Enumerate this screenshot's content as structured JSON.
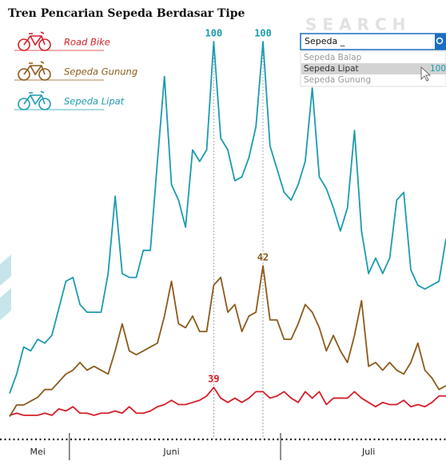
{
  "chart_data": {
    "type": "line",
    "title": "Tren Pencarian Sepeda Berdasar Tipe",
    "categories": [
      null,
      null,
      null,
      null,
      "Mei",
      null,
      null,
      null,
      null,
      null,
      null,
      null,
      null,
      null,
      null,
      null,
      null,
      null,
      null,
      null,
      null,
      null,
      null,
      "Juni",
      null,
      null,
      null,
      null,
      null,
      null,
      null,
      null,
      null,
      null,
      null,
      null,
      null,
      null,
      null,
      null,
      null,
      null,
      null,
      null,
      null,
      null,
      null,
      null,
      null,
      null,
      null,
      "Juli",
      null,
      null,
      null,
      null,
      null,
      null,
      null,
      null,
      null,
      null,
      null
    ],
    "ylim": [
      0,
      100
    ],
    "y2lim": [
      20,
      200
    ],
    "series": [
      {
        "name": "Sepeda Lipat",
        "color": "#1b9bb0",
        "values": [
          9,
          14,
          21,
          20,
          23,
          22,
          24,
          31,
          38,
          39,
          32,
          30,
          30,
          30,
          40,
          60,
          40,
          39,
          39,
          46,
          46,
          69,
          91,
          63,
          59,
          52,
          72,
          69,
          72,
          100,
          75,
          72,
          64,
          65,
          70,
          78,
          100,
          73,
          67,
          61,
          59,
          63,
          69,
          88,
          65,
          62,
          57,
          51,
          57,
          77,
          51,
          40,
          44,
          40,
          44,
          59,
          61,
          41,
          37,
          36,
          37,
          38,
          49
        ],
        "value_labels": [
          null,
          null,
          null,
          null,
          null,
          null,
          null,
          null,
          null,
          null,
          null,
          null,
          null,
          null,
          null,
          null,
          null,
          null,
          null,
          null,
          null,
          null,
          null,
          null,
          null,
          null,
          null,
          null,
          null,
          "100",
          null,
          null,
          null,
          null,
          null,
          null,
          "100",
          null,
          null,
          null,
          null,
          null,
          null,
          null,
          null,
          null,
          null,
          null,
          null,
          null,
          null,
          null,
          null,
          null,
          null,
          null,
          null,
          null,
          null,
          null,
          null,
          null,
          null
        ]
      },
      {
        "name": "Sepeda Gunung",
        "color": "#8b5a1b",
        "values": [
          3,
          6,
          6,
          7,
          8,
          10,
          10,
          12,
          14,
          15,
          17,
          15,
          16,
          15,
          14,
          20,
          27,
          20,
          19,
          20,
          21,
          22,
          29,
          38,
          27,
          26,
          29,
          25,
          25,
          37,
          39,
          30,
          32,
          25,
          29,
          30,
          42,
          28,
          28,
          23,
          23,
          27,
          32,
          30,
          26,
          20,
          24,
          20,
          17,
          24,
          33,
          16,
          17,
          15,
          17,
          15,
          14,
          17,
          22,
          15,
          13,
          10,
          11
        ],
        "value_labels": [
          null,
          null,
          null,
          null,
          null,
          null,
          null,
          null,
          null,
          null,
          null,
          null,
          null,
          null,
          null,
          null,
          null,
          null,
          null,
          null,
          null,
          null,
          null,
          null,
          null,
          null,
          null,
          null,
          null,
          null,
          null,
          null,
          null,
          null,
          null,
          null,
          "42",
          null,
          null,
          null,
          null,
          null,
          null,
          null,
          null,
          null,
          null,
          null,
          null,
          null,
          null,
          null,
          null,
          null,
          null,
          null,
          null,
          null,
          null,
          null,
          null,
          null,
          null
        ]
      },
      {
        "name": "Road Bike",
        "color": "#d4202a",
        "axis": "y2",
        "values": [
          26,
          27,
          26,
          26,
          26,
          27,
          26,
          29,
          28,
          30,
          27,
          27,
          26,
          27,
          27,
          28,
          27,
          30,
          27,
          27,
          28,
          30,
          31,
          33,
          31,
          31,
          32,
          33,
          35,
          39,
          34,
          32,
          34,
          32,
          34,
          37,
          37,
          34,
          35,
          37,
          34,
          32,
          37,
          34,
          37,
          31,
          34,
          34,
          34,
          37,
          34,
          32,
          30,
          32,
          31,
          31,
          33,
          30,
          31,
          30,
          32,
          35,
          35
        ],
        "value_labels": [
          null,
          null,
          null,
          null,
          null,
          null,
          null,
          null,
          null,
          null,
          null,
          null,
          null,
          null,
          null,
          null,
          null,
          null,
          null,
          null,
          null,
          null,
          null,
          null,
          null,
          null,
          null,
          null,
          null,
          "39",
          null,
          null,
          null,
          null,
          null,
          null,
          null,
          null,
          null,
          null,
          null,
          null,
          null,
          null,
          null,
          null,
          null,
          null,
          null,
          null,
          null,
          null,
          null,
          null,
          null,
          null,
          null,
          null,
          null,
          null,
          null,
          null,
          null
        ]
      }
    ]
  },
  "search": {
    "watermark": "SEARCH",
    "input": "Sepeda _",
    "options": [
      "Sepeda Balap",
      "Sepeda Lipat",
      "Sepeda Gunung"
    ],
    "option_value": "100"
  }
}
